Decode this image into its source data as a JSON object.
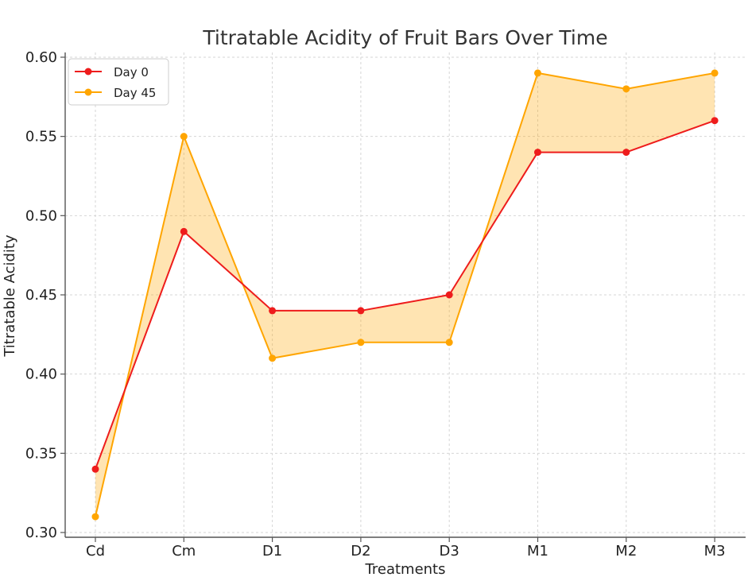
{
  "chart_data": {
    "type": "line",
    "title": "Titratable Acidity of Fruit Bars Over Time",
    "xlabel": "Treatments",
    "ylabel": "Titratable Acidity",
    "categories": [
      "Cd",
      "Cm",
      "D1",
      "D2",
      "D3",
      "M1",
      "M2",
      "M3"
    ],
    "series": [
      {
        "name": "Day 0",
        "color": "#ee1c1c",
        "values": [
          0.34,
          0.49,
          0.44,
          0.44,
          0.45,
          0.54,
          0.54,
          0.56
        ]
      },
      {
        "name": "Day 45",
        "color": "#ffa500",
        "values": [
          0.31,
          0.55,
          0.41,
          0.42,
          0.42,
          0.59,
          0.58,
          0.59
        ]
      }
    ],
    "fill_between": {
      "color": "#ffa500",
      "opacity": 0.3
    },
    "ylim": [
      0.297,
      0.603
    ],
    "yticks": [
      0.3,
      0.35,
      0.4,
      0.45,
      0.5,
      0.55,
      0.6
    ],
    "ytick_labels": [
      "0.30",
      "0.35",
      "0.40",
      "0.45",
      "0.50",
      "0.55",
      "0.60"
    ],
    "grid": true,
    "legend_position": "top-left"
  }
}
